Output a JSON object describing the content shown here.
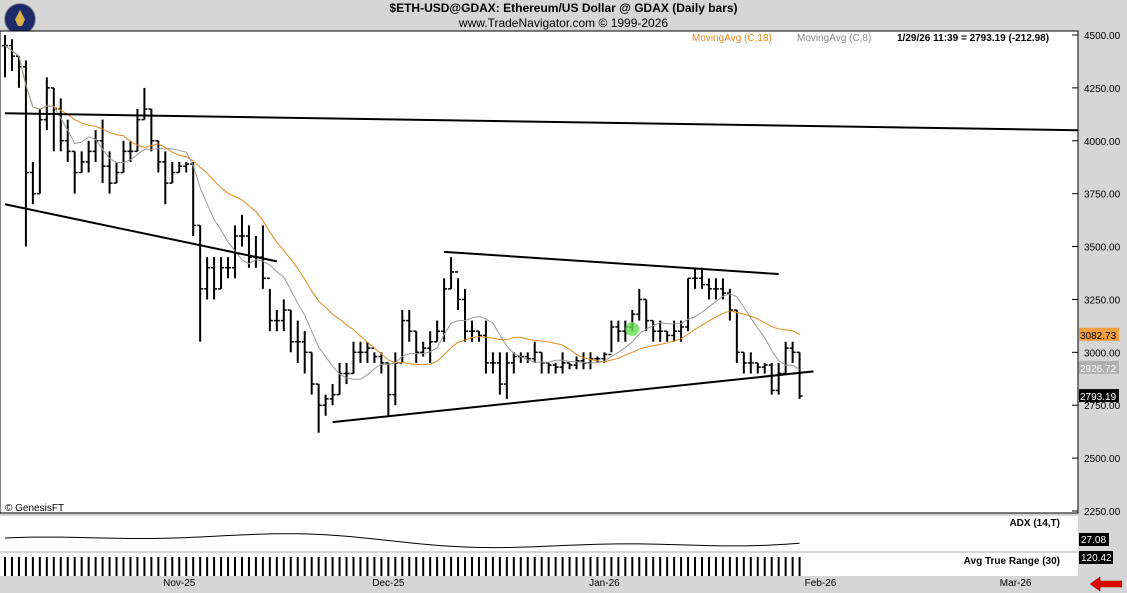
{
  "header": {
    "title": "$ETH-USD@GDAX:  Ethereum/US Dollar @ GDAX  (Daily bars)",
    "subtitle": "www.TradeNavigator.com © 1999-2026"
  },
  "legend": {
    "ma18": "MovingAvg (C,18)",
    "ma8": "MovingAvg (C,8)",
    "quote": "1/29/26 11:39 = 2793.19 (-212.98)"
  },
  "copyright": "© GenesisFT",
  "colors": {
    "ma18": "#e08a1e",
    "ma8": "#999999",
    "bars": "#000000",
    "highlight": "#66dd55",
    "arrow": "#e00000"
  },
  "chart_data": {
    "type": "ohlc",
    "ylim": [
      2250,
      4500
    ],
    "y_ticks": [
      "4500.00",
      "4250.00",
      "4000.00",
      "3750.00",
      "3500.00",
      "3250.00",
      "3000.00",
      "2750.00",
      "2500.00",
      "2250.00"
    ],
    "x_ticks": [
      {
        "label": "Nov-25",
        "date": "2025-11-01"
      },
      {
        "label": "Dec-25",
        "date": "2025-12-01"
      },
      {
        "label": "Jan-26",
        "date": "2026-01-01"
      },
      {
        "label": "Feb-26",
        "date": "2026-02-01"
      },
      {
        "label": "Mar-26",
        "date": "2026-03-01"
      }
    ],
    "xlim": [
      "2025-10-07",
      "2026-03-12"
    ],
    "start_date": "2025-10-07",
    "bars_hlc": [
      [
        4500,
        4300,
        4450
      ],
      [
        4480,
        4330,
        4400
      ],
      [
        4400,
        4250,
        4350
      ],
      [
        4380,
        3500,
        3850
      ],
      [
        3900,
        3700,
        3750
      ],
      [
        4150,
        3750,
        4100
      ],
      [
        4300,
        4050,
        4250
      ],
      [
        4250,
        3950,
        4150
      ],
      [
        4200,
        3950,
        4000
      ],
      [
        4100,
        3900,
        3950
      ],
      [
        3950,
        3750,
        3850
      ],
      [
        3950,
        3850,
        3900
      ],
      [
        4000,
        3850,
        3950
      ],
      [
        4050,
        3900,
        4000
      ],
      [
        4100,
        3800,
        3880
      ],
      [
        3950,
        3750,
        3800
      ],
      [
        3900,
        3800,
        3850
      ],
      [
        4000,
        3850,
        3950
      ],
      [
        4000,
        3900,
        3950
      ],
      [
        4150,
        3950,
        4100
      ],
      [
        4250,
        4100,
        4150
      ],
      [
        4150,
        3950,
        4000
      ],
      [
        4000,
        3850,
        3900
      ],
      [
        3950,
        3700,
        3800
      ],
      [
        3900,
        3800,
        3850
      ],
      [
        3900,
        3850,
        3880
      ],
      [
        3900,
        3850,
        3890
      ],
      [
        3900,
        3550,
        3600
      ],
      [
        3600,
        3050,
        3300
      ],
      [
        3450,
        3250,
        3400
      ],
      [
        3450,
        3250,
        3300
      ],
      [
        3450,
        3300,
        3400
      ],
      [
        3450,
        3350,
        3400
      ],
      [
        3600,
        3350,
        3550
      ],
      [
        3650,
        3500,
        3550
      ],
      [
        3600,
        3400,
        3450
      ],
      [
        3550,
        3400,
        3450
      ],
      [
        3600,
        3300,
        3350
      ],
      [
        3300,
        3100,
        3150
      ],
      [
        3200,
        3100,
        3150
      ],
      [
        3250,
        3100,
        3200
      ],
      [
        3200,
        3000,
        3050
      ],
      [
        3150,
        2950,
        3050
      ],
      [
        3100,
        2900,
        3000
      ],
      [
        3000,
        2800,
        2850
      ],
      [
        2850,
        2620,
        2750
      ],
      [
        2800,
        2700,
        2780
      ],
      [
        2850,
        2750,
        2800
      ],
      [
        2950,
        2800,
        2900
      ],
      [
        2950,
        2850,
        2900
      ],
      [
        3050,
        2900,
        3000
      ],
      [
        3050,
        2950,
        3000
      ],
      [
        3050,
        2950,
        3020
      ],
      [
        3000,
        2950,
        2980
      ],
      [
        3000,
        2900,
        2950
      ],
      [
        2950,
        2700,
        2800
      ],
      [
        3000,
        2750,
        2950
      ],
      [
        3200,
        2950,
        3150
      ],
      [
        3200,
        3050,
        3100
      ],
      [
        3100,
        2950,
        3000
      ],
      [
        3050,
        2980,
        3020
      ],
      [
        3100,
        2950,
        3050
      ],
      [
        3150,
        3050,
        3100
      ],
      [
        3350,
        3050,
        3300
      ],
      [
        3450,
        3300,
        3380
      ],
      [
        3350,
        3200,
        3250
      ],
      [
        3300,
        3050,
        3100
      ],
      [
        3150,
        3050,
        3100
      ],
      [
        3100,
        3050,
        3080
      ],
      [
        3150,
        2900,
        2950
      ],
      [
        3000,
        2900,
        2950
      ],
      [
        3000,
        2800,
        2850
      ],
      [
        3000,
        2780,
        2950
      ],
      [
        3000,
        2900,
        2980
      ],
      [
        3000,
        2950,
        2980
      ],
      [
        3000,
        2950,
        2970
      ],
      [
        3050,
        2950,
        3000
      ],
      [
        3000,
        2900,
        2950
      ],
      [
        2950,
        2900,
        2940
      ],
      [
        2950,
        2900,
        2930
      ],
      [
        3000,
        2900,
        2950
      ],
      [
        2950,
        2920,
        2940
      ],
      [
        2980,
        2920,
        2960
      ],
      [
        3000,
        2920,
        2950
      ],
      [
        3000,
        2920,
        2970
      ],
      [
        2980,
        2950,
        2970
      ],
      [
        3000,
        2950,
        2990
      ],
      [
        3150,
        3000,
        3120
      ],
      [
        3150,
        3050,
        3100
      ],
      [
        3150,
        3050,
        3120
      ],
      [
        3200,
        3100,
        3180
      ],
      [
        3300,
        3150,
        3250
      ],
      [
        3250,
        3100,
        3150
      ],
      [
        3150,
        3050,
        3100
      ],
      [
        3150,
        3050,
        3100
      ],
      [
        3100,
        3050,
        3080
      ],
      [
        3150,
        3050,
        3100
      ],
      [
        3150,
        3050,
        3120
      ],
      [
        3350,
        3100,
        3350
      ],
      [
        3400,
        3300,
        3350
      ],
      [
        3400,
        3300,
        3320
      ],
      [
        3350,
        3250,
        3300
      ],
      [
        3350,
        3250,
        3300
      ],
      [
        3350,
        3250,
        3280
      ],
      [
        3300,
        3150,
        3200
      ],
      [
        3200,
        2950,
        3000
      ],
      [
        3000,
        2900,
        2950
      ],
      [
        3000,
        2900,
        2950
      ],
      [
        2950,
        2900,
        2930
      ],
      [
        2950,
        2900,
        2940
      ],
      [
        2950,
        2800,
        2820
      ],
      [
        2950,
        2800,
        2900
      ],
      [
        3050,
        2900,
        3020
      ],
      [
        3050,
        2950,
        3000
      ],
      [
        3000,
        2780,
        2793.19
      ]
    ],
    "trendlines": [
      {
        "from": [
          "2025-10-07",
          4130
        ],
        "to": [
          "2026-03-12",
          4050
        ]
      },
      {
        "from": [
          "2025-10-07",
          3700
        ],
        "to": [
          "2025-11-15",
          3430
        ]
      },
      {
        "from": [
          "2025-11-23",
          2670
        ],
        "to": [
          "2026-01-31",
          2910
        ]
      },
      {
        "from": [
          "2025-12-09",
          3475
        ],
        "to": [
          "2026-01-26",
          3370
        ]
      }
    ],
    "highlight_point": [
      "2026-01-05",
      3110
    ],
    "price_labels": {
      "ma18": "3082.73",
      "ma8": "2926.72",
      "last": "2793.19"
    },
    "indicators": {
      "adx": {
        "name": "ADX (14,T)",
        "value": "27.08"
      },
      "atr": {
        "name": "Avg True Range (30)",
        "value": "120.42"
      }
    }
  }
}
